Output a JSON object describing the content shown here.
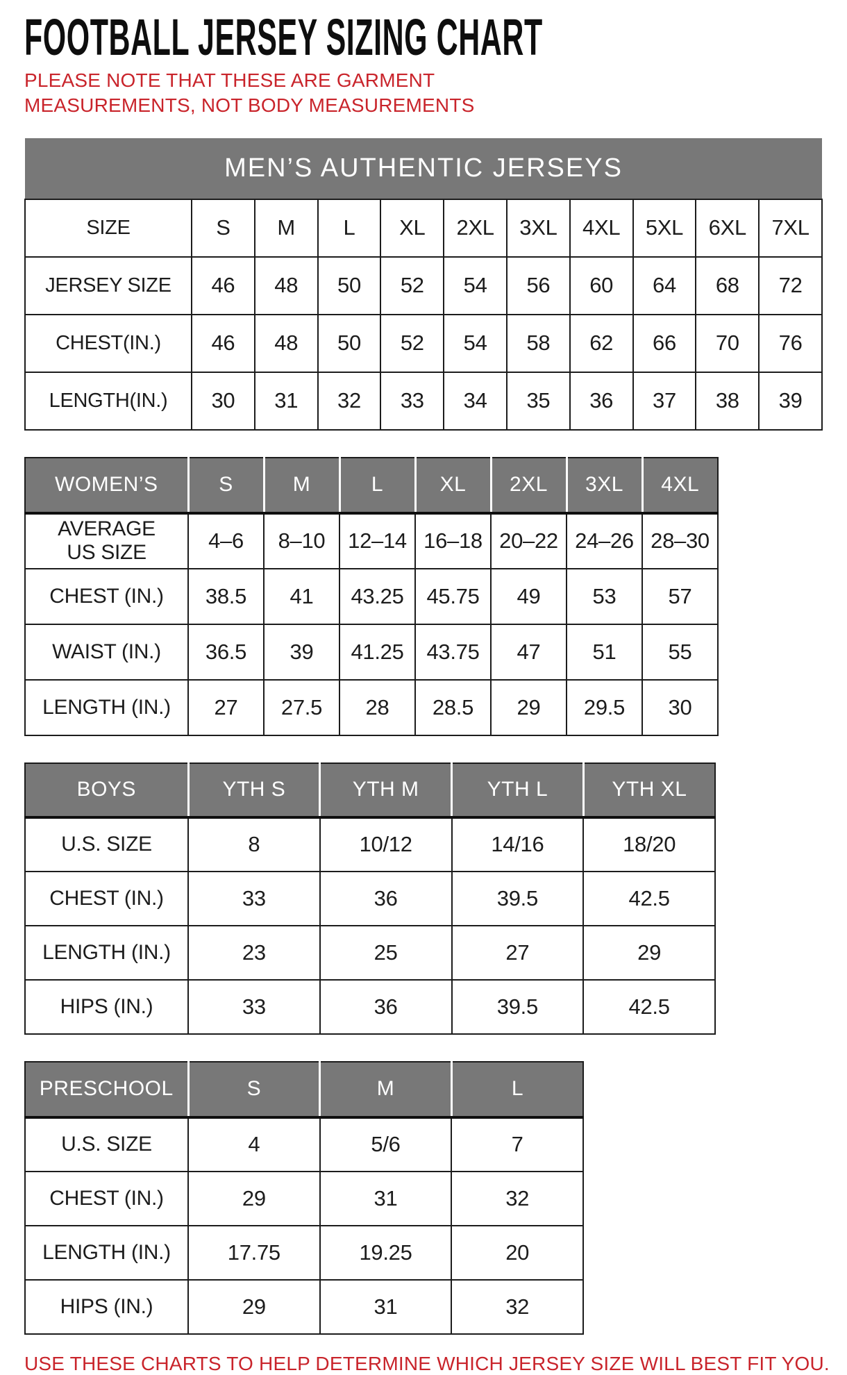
{
  "title": "FOOTBALL JERSEY SIZING CHART",
  "note": "PLEASE NOTE THAT THESE ARE GARMENT MEASUREMENTS, NOT BODY MEASUREMENTS",
  "footer": "USE THESE CHARTS TO HELP DETERMINE WHICH JERSEY SIZE WILL BEST FIT YOU.",
  "colors": {
    "header_gray": "#787878",
    "accent_red": "#c9242b",
    "text_black": "#1c1c1c"
  },
  "tables": [
    {
      "id": "mens",
      "banner": "MEN’S AUTHENTIC JERSEYS",
      "rows": [
        {
          "label": "SIZE",
          "values": [
            "S",
            "M",
            "L",
            "XL",
            "2XL",
            "3XL",
            "4XL",
            "5XL",
            "6XL",
            "7XL"
          ]
        },
        {
          "label": "JERSEY SIZE",
          "values": [
            "46",
            "48",
            "50",
            "52",
            "54",
            "56",
            "60",
            "64",
            "68",
            "72"
          ]
        },
        {
          "label": "CHEST(IN.)",
          "values": [
            "46",
            "48",
            "50",
            "52",
            "54",
            "58",
            "62",
            "66",
            "70",
            "76"
          ]
        },
        {
          "label": "LENGTH(IN.)",
          "values": [
            "30",
            "31",
            "32",
            "33",
            "34",
            "35",
            "36",
            "37",
            "38",
            "39"
          ]
        }
      ]
    },
    {
      "id": "womens",
      "header": {
        "label": "WOMEN’S",
        "columns": [
          "S",
          "M",
          "L",
          "XL",
          "2XL",
          "3XL",
          "4XL"
        ]
      },
      "rows": [
        {
          "label": "AVERAGE US SIZE",
          "label_lines": [
            "AVERAGE",
            "US SIZE"
          ],
          "values": [
            "4–6",
            "8–10",
            "12–14",
            "16–18",
            "20–22",
            "24–26",
            "28–30"
          ]
        },
        {
          "label": "CHEST (IN.)",
          "values": [
            "38.5",
            "41",
            "43.25",
            "45.75",
            "49",
            "53",
            "57"
          ]
        },
        {
          "label": "WAIST (IN.)",
          "values": [
            "36.5",
            "39",
            "41.25",
            "43.75",
            "47",
            "51",
            "55"
          ]
        },
        {
          "label": "LENGTH (IN.)",
          "values": [
            "27",
            "27.5",
            "28",
            "28.5",
            "29",
            "29.5",
            "30"
          ]
        }
      ]
    },
    {
      "id": "boys",
      "header": {
        "label": "BOYS",
        "columns": [
          "YTH S",
          "YTH M",
          "YTH L",
          "YTH XL"
        ]
      },
      "rows": [
        {
          "label": "U.S. SIZE",
          "values": [
            "8",
            "10/12",
            "14/16",
            "18/20"
          ]
        },
        {
          "label": "CHEST (IN.)",
          "values": [
            "33",
            "36",
            "39.5",
            "42.5"
          ]
        },
        {
          "label": "LENGTH (IN.)",
          "values": [
            "23",
            "25",
            "27",
            "29"
          ]
        },
        {
          "label": "HIPS (IN.)",
          "values": [
            "33",
            "36",
            "39.5",
            "42.5"
          ]
        }
      ]
    },
    {
      "id": "preschool",
      "header": {
        "label": "PRESCHOOL",
        "columns": [
          "S",
          "M",
          "L"
        ]
      },
      "rows": [
        {
          "label": "U.S. SIZE",
          "values": [
            "4",
            "5/6",
            "7"
          ]
        },
        {
          "label": "CHEST (IN.)",
          "values": [
            "29",
            "31",
            "32"
          ]
        },
        {
          "label": "LENGTH (IN.)",
          "values": [
            "17.75",
            "19.25",
            "20"
          ]
        },
        {
          "label": "HIPS (IN.)",
          "values": [
            "29",
            "31",
            "32"
          ]
        }
      ]
    }
  ]
}
